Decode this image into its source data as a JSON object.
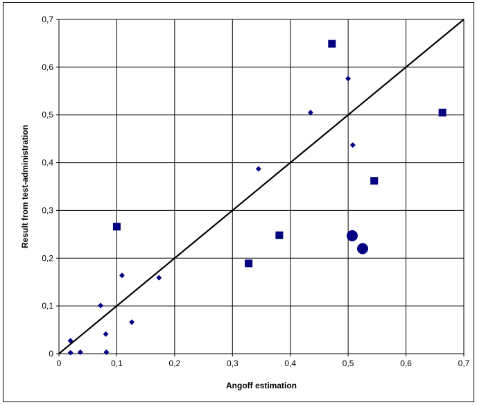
{
  "chart_data": {
    "type": "scatter",
    "title": "",
    "xlabel": "Angoff estimation",
    "ylabel": "Result from test-administration",
    "xlim": [
      0,
      0.7
    ],
    "ylim": [
      0,
      0.7
    ],
    "x_ticks": [
      "0",
      "0,1",
      "0,2",
      "0,3",
      "0,4",
      "0,5",
      "0,6",
      "0,7"
    ],
    "y_ticks": [
      "0",
      "0,1",
      "0,2",
      "0,3",
      "0,4",
      "0,5",
      "0,6",
      "0,7"
    ],
    "grid": true,
    "legend": "none",
    "reference_line": {
      "from": [
        0,
        0
      ],
      "to": [
        0.7,
        0.7
      ],
      "color": "#000000"
    },
    "series": [
      {
        "marker": "diamond",
        "color": "#000080",
        "points": [
          {
            "x": 0.02,
            "y": 0.027
          },
          {
            "x": 0.02,
            "y": 0.002
          },
          {
            "x": 0.037,
            "y": 0.003
          },
          {
            "x": 0.072,
            "y": 0.101
          },
          {
            "x": 0.081,
            "y": 0.041
          },
          {
            "x": 0.082,
            "y": 0.003
          },
          {
            "x": 0.109,
            "y": 0.164
          },
          {
            "x": 0.126,
            "y": 0.066
          },
          {
            "x": 0.173,
            "y": 0.159
          },
          {
            "x": 0.345,
            "y": 0.387
          },
          {
            "x": 0.435,
            "y": 0.505
          },
          {
            "x": 0.5,
            "y": 0.576
          },
          {
            "x": 0.508,
            "y": 0.437
          }
        ]
      },
      {
        "marker": "square",
        "color": "#000080",
        "points": [
          {
            "x": 0.1,
            "y": 0.266
          },
          {
            "x": 0.328,
            "y": 0.189
          },
          {
            "x": 0.381,
            "y": 0.248
          },
          {
            "x": 0.472,
            "y": 0.649
          },
          {
            "x": 0.545,
            "y": 0.362
          },
          {
            "x": 0.663,
            "y": 0.505
          }
        ]
      },
      {
        "marker": "circle",
        "color": "#000080",
        "points": [
          {
            "x": 0.507,
            "y": 0.247
          },
          {
            "x": 0.525,
            "y": 0.22
          }
        ]
      }
    ]
  }
}
